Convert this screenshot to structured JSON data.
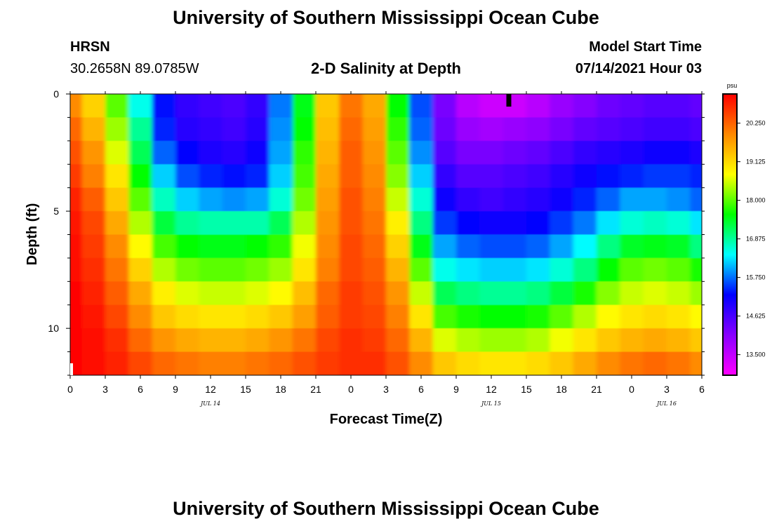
{
  "header": {
    "title": "University of Southern Mississippi Ocean Cube",
    "station": "HRSN",
    "coords": "30.2658N  89.0785W",
    "plot_title": "2-D Salinity at Depth",
    "model_label": "Model Start Time",
    "model_time": "07/14/2021 Hour 03"
  },
  "footer": {
    "title": "University of Southern Mississippi Ocean Cube"
  },
  "chart_data": {
    "type": "heatmap",
    "title": "2-D Salinity at Depth",
    "xlabel": "Forecast Time(Z)",
    "ylabel": "Depth (ft)",
    "x_ticks": [
      "0",
      "3",
      "6",
      "9",
      "12",
      "15",
      "18",
      "21",
      "0",
      "3",
      "6",
      "9",
      "12",
      "15",
      "18",
      "21",
      "0",
      "3",
      "6"
    ],
    "x_range_hours": [
      0,
      54
    ],
    "date_labels": [
      {
        "label": "JUL 14",
        "hour": 12
      },
      {
        "label": "JUL 15",
        "hour": 36
      },
      {
        "label": "JUL 16",
        "hour": 51
      }
    ],
    "y_ticks": [
      "0",
      "5",
      "10"
    ],
    "y_range_ft": [
      0,
      12
    ],
    "colorbar": {
      "unit": "psu",
      "range": [
        12.9,
        21.1
      ],
      "labels": [
        "20.250",
        "19.125",
        "18.000",
        "16.875",
        "15.750",
        "14.625",
        "13.500"
      ],
      "colors": [
        "#ff00ff",
        "#8800ff",
        "#0000ff",
        "#00ffff",
        "#00ff00",
        "#ffff00",
        "#ff8800",
        "#ff0000"
      ]
    },
    "depth_levels_ft": [
      0.5,
      1.5,
      2.5,
      3.5,
      4.5,
      5.5,
      6.5,
      7.5,
      8.5,
      9.5,
      10.5,
      11.5
    ],
    "forecast_hours": [
      0,
      2,
      4,
      6,
      8,
      10,
      12,
      14,
      16,
      18,
      20,
      22,
      24,
      26,
      28,
      30,
      32,
      34,
      36,
      38,
      40,
      42,
      44,
      46,
      48,
      50,
      52,
      54
    ],
    "salinity_psu": [
      [
        19.9,
        19.2,
        18.0,
        16.5,
        15.3,
        14.8,
        14.7,
        14.6,
        14.8,
        15.8,
        17.5,
        19.3,
        20.1,
        19.6,
        17.6,
        15.6,
        14.2,
        13.6,
        13.4,
        13.4,
        13.6,
        13.9,
        14.1,
        14.3,
        14.4,
        14.5,
        14.5,
        14.4
      ],
      [
        20.2,
        19.5,
        18.3,
        16.9,
        15.4,
        14.9,
        14.8,
        14.7,
        14.9,
        15.9,
        17.6,
        19.4,
        20.2,
        19.7,
        17.8,
        15.7,
        14.3,
        13.9,
        13.8,
        13.9,
        14.0,
        14.2,
        14.4,
        14.5,
        14.6,
        14.7,
        14.7,
        14.6
      ],
      [
        20.4,
        19.8,
        18.6,
        17.2,
        15.7,
        15.2,
        15.0,
        14.9,
        15.1,
        16.0,
        17.8,
        19.5,
        20.3,
        19.8,
        18.0,
        15.9,
        14.5,
        14.2,
        14.2,
        14.3,
        14.4,
        14.6,
        14.8,
        14.9,
        15.0,
        15.1,
        15.1,
        15.0
      ],
      [
        20.6,
        20.0,
        19.0,
        17.6,
        16.2,
        15.6,
        15.4,
        15.3,
        15.4,
        16.2,
        17.9,
        19.6,
        20.3,
        19.9,
        18.2,
        16.2,
        14.8,
        14.5,
        14.5,
        14.6,
        14.7,
        14.9,
        15.1,
        15.3,
        15.4,
        15.5,
        15.5,
        15.4
      ],
      [
        20.8,
        20.3,
        19.3,
        18.0,
        16.7,
        16.2,
        16.0,
        15.9,
        16.0,
        16.6,
        18.1,
        19.7,
        20.4,
        20.0,
        18.5,
        16.6,
        15.1,
        14.8,
        14.7,
        14.8,
        14.9,
        15.1,
        15.4,
        15.7,
        16.0,
        16.0,
        15.9,
        15.7
      ],
      [
        20.9,
        20.5,
        19.6,
        18.4,
        17.3,
        16.9,
        16.8,
        16.8,
        16.8,
        17.2,
        18.4,
        19.8,
        20.4,
        20.1,
        18.9,
        17.0,
        15.5,
        15.2,
        15.1,
        15.1,
        15.2,
        15.5,
        15.8,
        16.3,
        16.6,
        16.7,
        16.6,
        16.3
      ],
      [
        21.0,
        20.6,
        19.9,
        18.8,
        17.9,
        17.6,
        17.5,
        17.5,
        17.6,
        17.8,
        18.7,
        19.9,
        20.5,
        20.2,
        19.2,
        17.5,
        16.0,
        15.7,
        15.6,
        15.6,
        15.7,
        16.0,
        16.4,
        17.0,
        17.4,
        17.5,
        17.4,
        17.0
      ],
      [
        21.0,
        20.7,
        20.1,
        19.2,
        18.4,
        18.1,
        18.0,
        18.0,
        18.1,
        18.3,
        19.0,
        20.0,
        20.5,
        20.3,
        19.5,
        18.0,
        16.5,
        16.3,
        16.2,
        16.2,
        16.3,
        16.6,
        17.0,
        17.6,
        18.0,
        18.1,
        18.0,
        17.7
      ],
      [
        21.1,
        20.8,
        20.3,
        19.6,
        18.9,
        18.6,
        18.5,
        18.5,
        18.6,
        18.8,
        19.4,
        20.2,
        20.6,
        20.4,
        19.8,
        18.5,
        17.2,
        17.0,
        16.9,
        16.9,
        17.0,
        17.3,
        17.7,
        18.2,
        18.5,
        18.6,
        18.5,
        18.3
      ],
      [
        21.1,
        20.9,
        20.5,
        19.9,
        19.3,
        19.1,
        19.0,
        19.0,
        19.1,
        19.3,
        19.7,
        20.3,
        20.6,
        20.5,
        20.0,
        19.0,
        17.9,
        17.7,
        17.6,
        17.6,
        17.7,
        18.0,
        18.4,
        18.8,
        19.0,
        19.1,
        19.0,
        18.8
      ],
      [
        21.1,
        21.0,
        20.7,
        20.2,
        19.8,
        19.6,
        19.5,
        19.5,
        19.6,
        19.8,
        20.1,
        20.5,
        20.7,
        20.6,
        20.2,
        19.5,
        18.6,
        18.4,
        18.3,
        18.3,
        18.4,
        18.7,
        19.0,
        19.3,
        19.5,
        19.6,
        19.5,
        19.3
      ],
      [
        21.1,
        21.0,
        20.8,
        20.5,
        20.2,
        20.1,
        20.0,
        20.0,
        20.1,
        20.2,
        20.4,
        20.6,
        20.7,
        20.7,
        20.4,
        19.9,
        19.3,
        19.1,
        19.0,
        19.0,
        19.1,
        19.3,
        19.6,
        19.9,
        20.1,
        20.2,
        20.1,
        19.9
      ]
    ],
    "marker_hour": 37.5
  }
}
